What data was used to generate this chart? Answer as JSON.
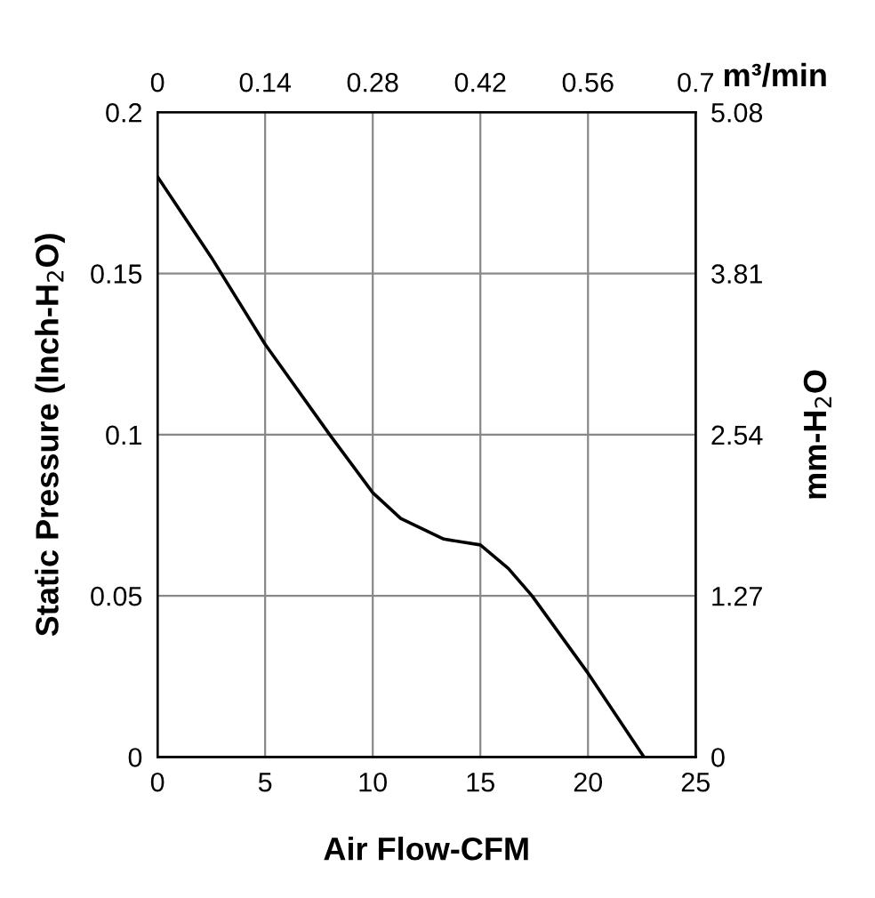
{
  "chart_data": {
    "type": "line",
    "xlabel": "Air Flow-CFM",
    "ylabel": "Static Pressure (Inch-H$_{2}$O)",
    "y2label": "mm-H$_{2}$O",
    "x2label": "m³/min",
    "x": [
      0,
      2.5,
      5,
      8,
      10,
      11.3,
      13.3,
      15,
      16.3,
      17.4,
      20,
      22.6
    ],
    "series": [
      {
        "color": "#000000",
        "values": [
          0.18,
          0.155,
          0.128,
          0.1,
          0.082,
          0.074,
          0.0676,
          0.0658,
          0.0585,
          0.05,
          0.026,
          0
        ]
      }
    ],
    "xlim": [
      0,
      25
    ],
    "xticks": [
      0,
      5,
      10,
      15,
      20,
      25
    ],
    "ylim": [
      0,
      0.2
    ],
    "yticks": [
      0,
      0.05,
      0.1,
      0.15,
      0.2
    ],
    "y2lim": [
      0,
      5.08
    ],
    "y2ticks": [
      0,
      1.27,
      2.54,
      3.81,
      5.08
    ],
    "x2lim": [
      0,
      0.7
    ],
    "x2ticks": [
      0,
      0.14,
      0.28,
      0.42,
      0.56,
      0.7
    ],
    "grid": true,
    "marker": "none",
    "line_style": "solid",
    "legend": false
  }
}
